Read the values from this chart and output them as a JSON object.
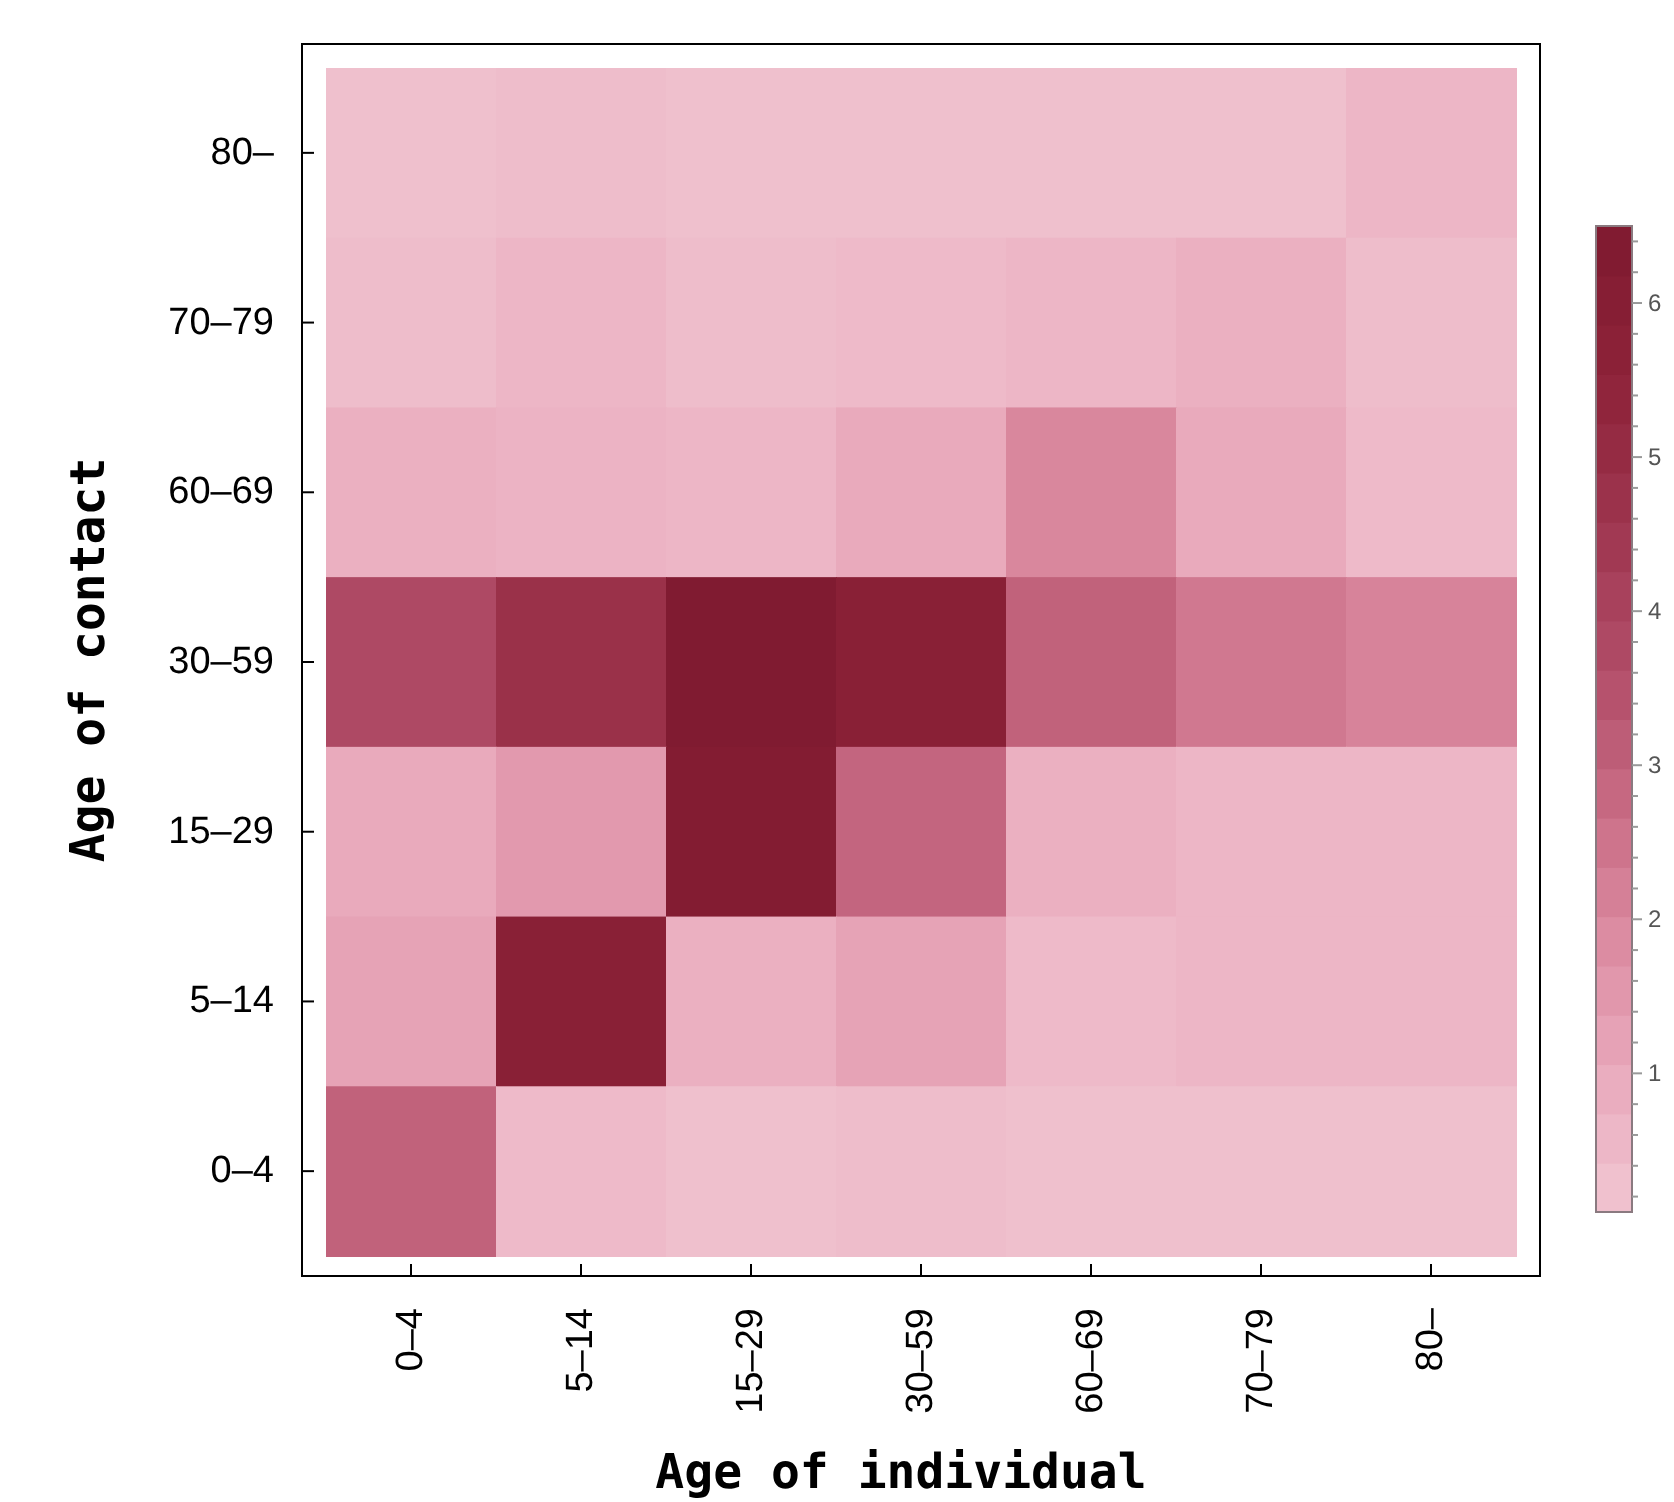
{
  "chart_data": {
    "type": "heatmap",
    "xlabel": "Age of individual",
    "ylabel": "Age of contact",
    "categories": [
      "0–4",
      "5–14",
      "15–29",
      "30–59",
      "60–69",
      "70–79",
      "80–"
    ],
    "y_categories": [
      "80–",
      "70–79",
      "60–69",
      "30–59",
      "15–29",
      "5–14",
      "0–4"
    ],
    "cells": [
      [
        0.3,
        0.4,
        0.3,
        0.3,
        0.3,
        0.3,
        0.6
      ],
      [
        0.4,
        0.6,
        0.4,
        0.5,
        0.6,
        0.8,
        0.4
      ],
      [
        0.8,
        0.7,
        0.6,
        1.0,
        2.0,
        1.0,
        0.5
      ],
      [
        3.8,
        4.8,
        6.4,
        5.8,
        3.0,
        2.4,
        2.1
      ],
      [
        1.0,
        1.5,
        6.2,
        2.9,
        0.8,
        0.6,
        0.6
      ],
      [
        1.2,
        5.8,
        0.8,
        1.2,
        0.5,
        0.6,
        0.6
      ],
      [
        3.0,
        0.5,
        0.3,
        0.4,
        0.3,
        0.3,
        0.3
      ]
    ],
    "clim": [
      0.1,
      6.5
    ],
    "cticks": [
      {
        "value": 0.2,
        "label": null
      },
      {
        "value": 0.4,
        "label": null
      },
      {
        "value": 0.6,
        "label": null
      },
      {
        "value": 0.8,
        "label": null
      },
      1,
      {
        "value": 1.2,
        "label": null
      },
      {
        "value": 1.4,
        "label": null
      },
      {
        "value": 1.6,
        "label": null
      },
      {
        "value": 1.8,
        "label": null
      },
      2,
      {
        "value": 2.2,
        "label": null
      },
      {
        "value": 2.4,
        "label": null
      },
      {
        "value": 2.6,
        "label": null
      },
      {
        "value": 2.8,
        "label": null
      },
      3,
      {
        "value": 3.2,
        "label": null
      },
      {
        "value": 3.4,
        "label": null
      },
      {
        "value": 3.6,
        "label": null
      },
      {
        "value": 3.8,
        "label": null
      },
      4,
      {
        "value": 4.2,
        "label": null
      },
      {
        "value": 4.4,
        "label": null
      },
      {
        "value": 4.6,
        "label": null
      },
      {
        "value": 4.8,
        "label": null
      },
      5,
      {
        "value": 5.2,
        "label": null
      },
      {
        "value": 5.4,
        "label": null
      },
      {
        "value": 5.6,
        "label": null
      },
      {
        "value": 5.8,
        "label": null
      },
      6,
      {
        "value": 6.2,
        "label": null
      },
      {
        "value": 6.4,
        "label": null
      }
    ]
  }
}
